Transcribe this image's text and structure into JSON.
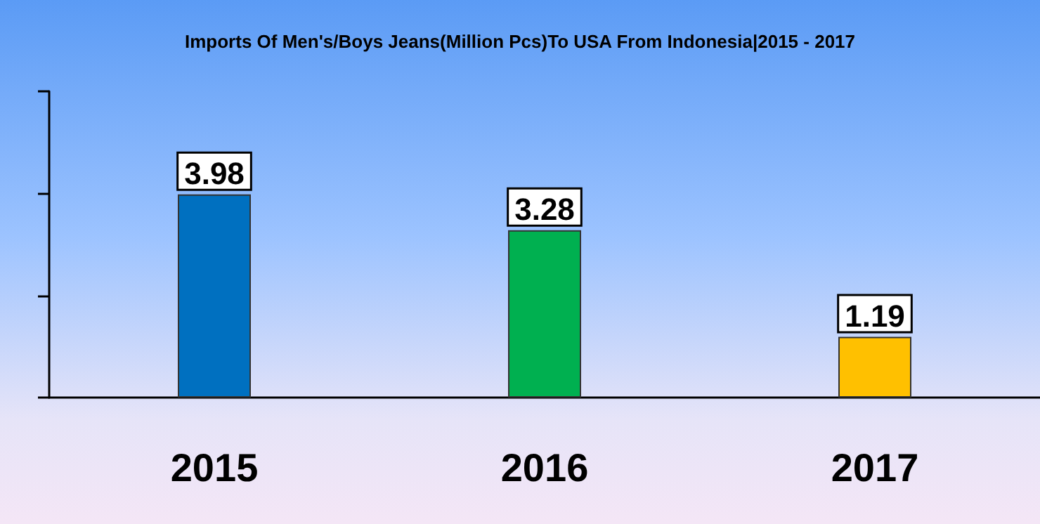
{
  "chart_data": {
    "type": "bar",
    "title": "Imports Of Men's/Boys Jeans(Million Pcs)To USA From Indonesia|2015 - 2017",
    "categories": [
      "2015",
      "2016",
      "2017"
    ],
    "values": [
      3.98,
      3.28,
      1.19
    ],
    "colors": [
      "#0070c0",
      "#00b050",
      "#ffc000"
    ],
    "ylim": [
      0,
      6
    ],
    "yticks": [
      {
        "value": 0,
        "label": null
      },
      {
        "value": 2,
        "label": null
      },
      {
        "value": 4,
        "label": null
      },
      {
        "value": 6,
        "label": null
      }
    ],
    "tick_labels": "x",
    "data_labels": true
  }
}
